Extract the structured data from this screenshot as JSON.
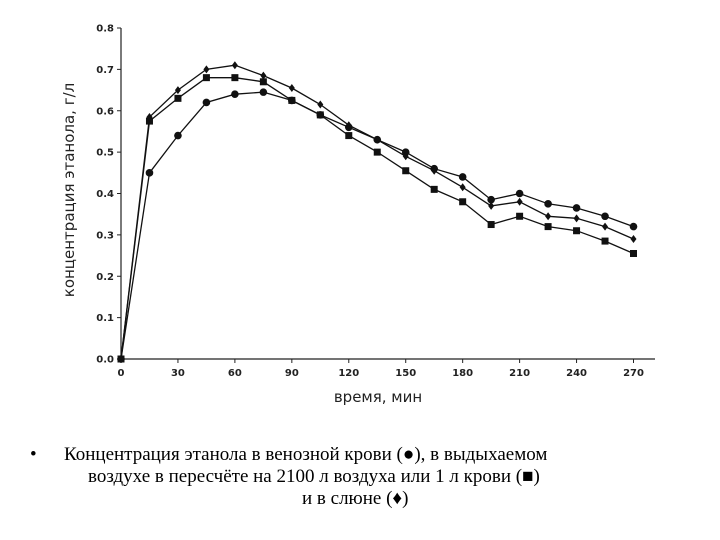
{
  "chart_data": {
    "type": "line",
    "xlabel": "время, мин",
    "ylabel": "концентрация этанола, г/л",
    "xlim": [
      0,
      280
    ],
    "ylim": [
      0,
      0.8
    ],
    "xticks": [
      "0",
      "30",
      "60",
      "90",
      "120",
      "150",
      "180",
      "210",
      "240",
      "270"
    ],
    "yticks": [
      "0.0",
      "0.1",
      "0.2",
      "0.3",
      "0.4",
      "0.5",
      "0.6",
      "0.7",
      "0.8"
    ],
    "grid": false,
    "series": [
      {
        "marker": "circle",
        "x": [
          0,
          15,
          30,
          45,
          60,
          75,
          90,
          105,
          120,
          135,
          150,
          165,
          180,
          195,
          210,
          225,
          240,
          255,
          270
        ],
        "y": [
          0.0,
          0.45,
          0.54,
          0.62,
          0.64,
          0.645,
          0.625,
          0.59,
          0.56,
          0.53,
          0.5,
          0.46,
          0.44,
          0.385,
          0.4,
          0.375,
          0.365,
          0.345,
          0.32
        ]
      },
      {
        "marker": "square",
        "x": [
          0,
          15,
          30,
          45,
          60,
          75,
          90,
          105,
          120,
          135,
          150,
          165,
          180,
          195,
          210,
          225,
          240,
          255,
          270
        ],
        "y": [
          0.0,
          0.575,
          0.63,
          0.68,
          0.68,
          0.67,
          0.625,
          0.59,
          0.54,
          0.5,
          0.455,
          0.41,
          0.38,
          0.325,
          0.345,
          0.32,
          0.31,
          0.285,
          0.255
        ]
      },
      {
        "marker": "diamond",
        "x": [
          0,
          15,
          30,
          45,
          60,
          75,
          90,
          105,
          120,
          135,
          150,
          165,
          180,
          195,
          210,
          225,
          240,
          255,
          270
        ],
        "y": [
          0.0,
          0.585,
          0.65,
          0.7,
          0.71,
          0.685,
          0.655,
          0.615,
          0.565,
          0.53,
          0.49,
          0.455,
          0.415,
          0.37,
          0.38,
          0.345,
          0.34,
          0.32,
          0.29
        ]
      }
    ]
  },
  "caption": {
    "bullet": "•",
    "line1": "Концентрация этанола в венозной крови (●), в выдыхаемом",
    "line2": "воздухе в пересчёте на 2100 л воздуха или 1 л крови (■)",
    "line3": "и  в слюне (♦)"
  }
}
